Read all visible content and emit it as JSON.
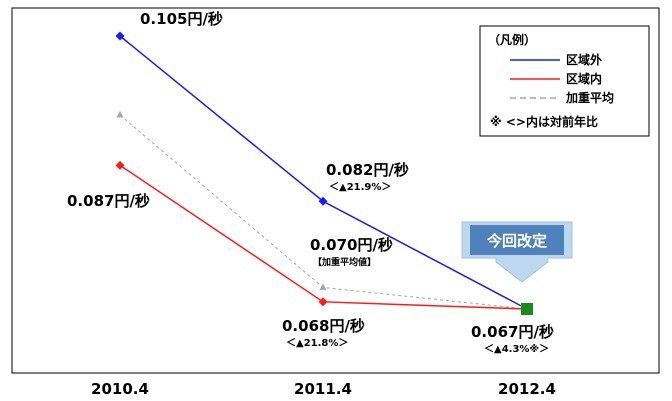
{
  "chart_data": {
    "type": "line",
    "categories": [
      "2010.4",
      "2011.4",
      "2012.4"
    ],
    "series": [
      {
        "name": "区域外",
        "color": "#1a1aff",
        "dash": false,
        "values": [
          0.105,
          0.082,
          0.067
        ]
      },
      {
        "name": "区域内",
        "color": "#ff1a1a",
        "dash": false,
        "values": [
          0.087,
          0.068,
          0.067
        ]
      },
      {
        "name": "加重平均",
        "color": "#a6a6a6",
        "dash": true,
        "values": [
          0.094,
          0.07,
          0.067
        ]
      }
    ],
    "ylim": [
      0.06,
      0.11
    ],
    "grid": false,
    "legend": {
      "title": "（凡例）",
      "position": "top-right",
      "note": "※ <>内は対前年比"
    },
    "annotations": {
      "out_2010": "0.105円/秒",
      "in_2010": "0.087円/秒",
      "out_2011": "0.082円/秒",
      "out_2011_change": "＜▲21.9%＞",
      "avg_2011": "0.070円/秒",
      "avg_2011_tag": "【加重平均値】",
      "in_2011": "0.068円/秒",
      "in_2011_change": "＜▲21.8%＞",
      "new_2012": "0.067円/秒",
      "new_2012_change": "＜▲4.3%※＞",
      "callout": "今回改定"
    },
    "marker_colors": {
      "new_point": "#1a8a1a",
      "callout_fill": "#5b9bd5",
      "callout_bg": "#bdd7ee"
    }
  }
}
